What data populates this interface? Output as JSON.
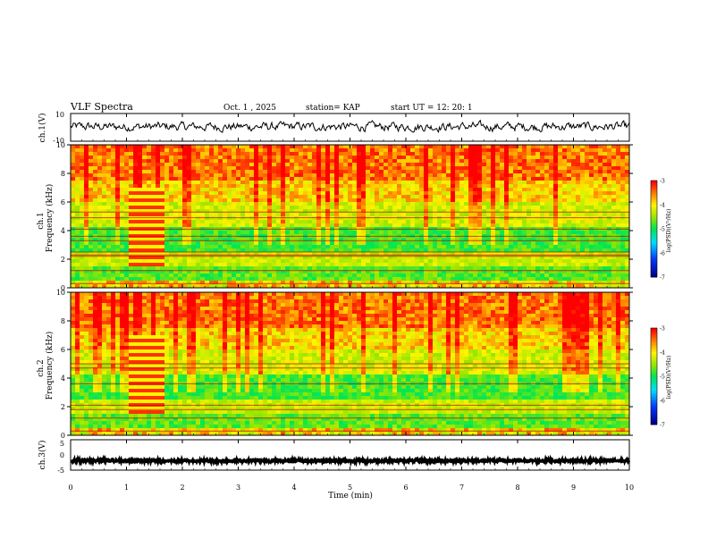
{
  "header": {
    "title": "VLF Spectra",
    "date": "Oct. 1 , 2025",
    "station": "station= KAP",
    "start": "start  UT =   12: 20: 1"
  },
  "chart_data": [
    {
      "type": "line",
      "name": "ch1-waveform",
      "ylabel": "ch.1(V)",
      "ylim": [
        -10,
        10
      ],
      "yticks": [
        "10",
        "-10"
      ],
      "xlim": [
        0,
        10
      ],
      "mean": 0.5,
      "amplitude": 3
    },
    {
      "type": "heatmap",
      "name": "ch1-spectrogram",
      "ylabel_top": "ch.1",
      "ylabel": "Frequency  (kHz)",
      "ylim": [
        0,
        10
      ],
      "yticks": [
        "0",
        "2",
        "4",
        "6",
        "8",
        "10"
      ],
      "xlim": [
        0,
        10
      ],
      "colorbar": {
        "label": "log(PSD)(V²/Hz)",
        "range": [
          -7,
          -3
        ],
        "ticks": [
          "-3",
          "-4",
          "-5",
          "-6",
          "-7"
        ]
      },
      "bands_khz": [
        5.3,
        4.9,
        4.1,
        3.6,
        3.3,
        2.5,
        2.3,
        2.2,
        1.2,
        0.3
      ],
      "burst_min": [
        1.05,
        1.65
      ]
    },
    {
      "type": "heatmap",
      "name": "ch2-spectrogram",
      "ylabel_top": "ch.2",
      "ylabel": "Frequency  (kHz)",
      "ylim": [
        0,
        10
      ],
      "yticks": [
        "0",
        "2",
        "4",
        "6",
        "8",
        "10"
      ],
      "xlim": [
        0,
        10
      ],
      "colorbar": {
        "label": "log(PSD)(V²/Hz)",
        "range": [
          -7,
          -3
        ],
        "ticks": [
          "-3",
          "-4",
          "-5",
          "-6",
          "-7"
        ]
      },
      "bands_khz": [
        5.0,
        4.7,
        3.6,
        2.1,
        1.8,
        1.2,
        0.3
      ],
      "burst_min": [
        1.05,
        1.65
      ]
    },
    {
      "type": "line",
      "name": "ch3-waveform",
      "ylabel": "ch.3(V)",
      "ylim": [
        -5,
        5
      ],
      "yticks": [
        "5",
        "0",
        "-5"
      ],
      "xlim": [
        0,
        10
      ],
      "mean": -1.9,
      "amplitude": 0.45
    }
  ],
  "xaxis": {
    "label": "Time  (min)",
    "ticks": [
      "0",
      "1",
      "2",
      "3",
      "4",
      "5",
      "6",
      "7",
      "8",
      "9",
      "10"
    ]
  }
}
